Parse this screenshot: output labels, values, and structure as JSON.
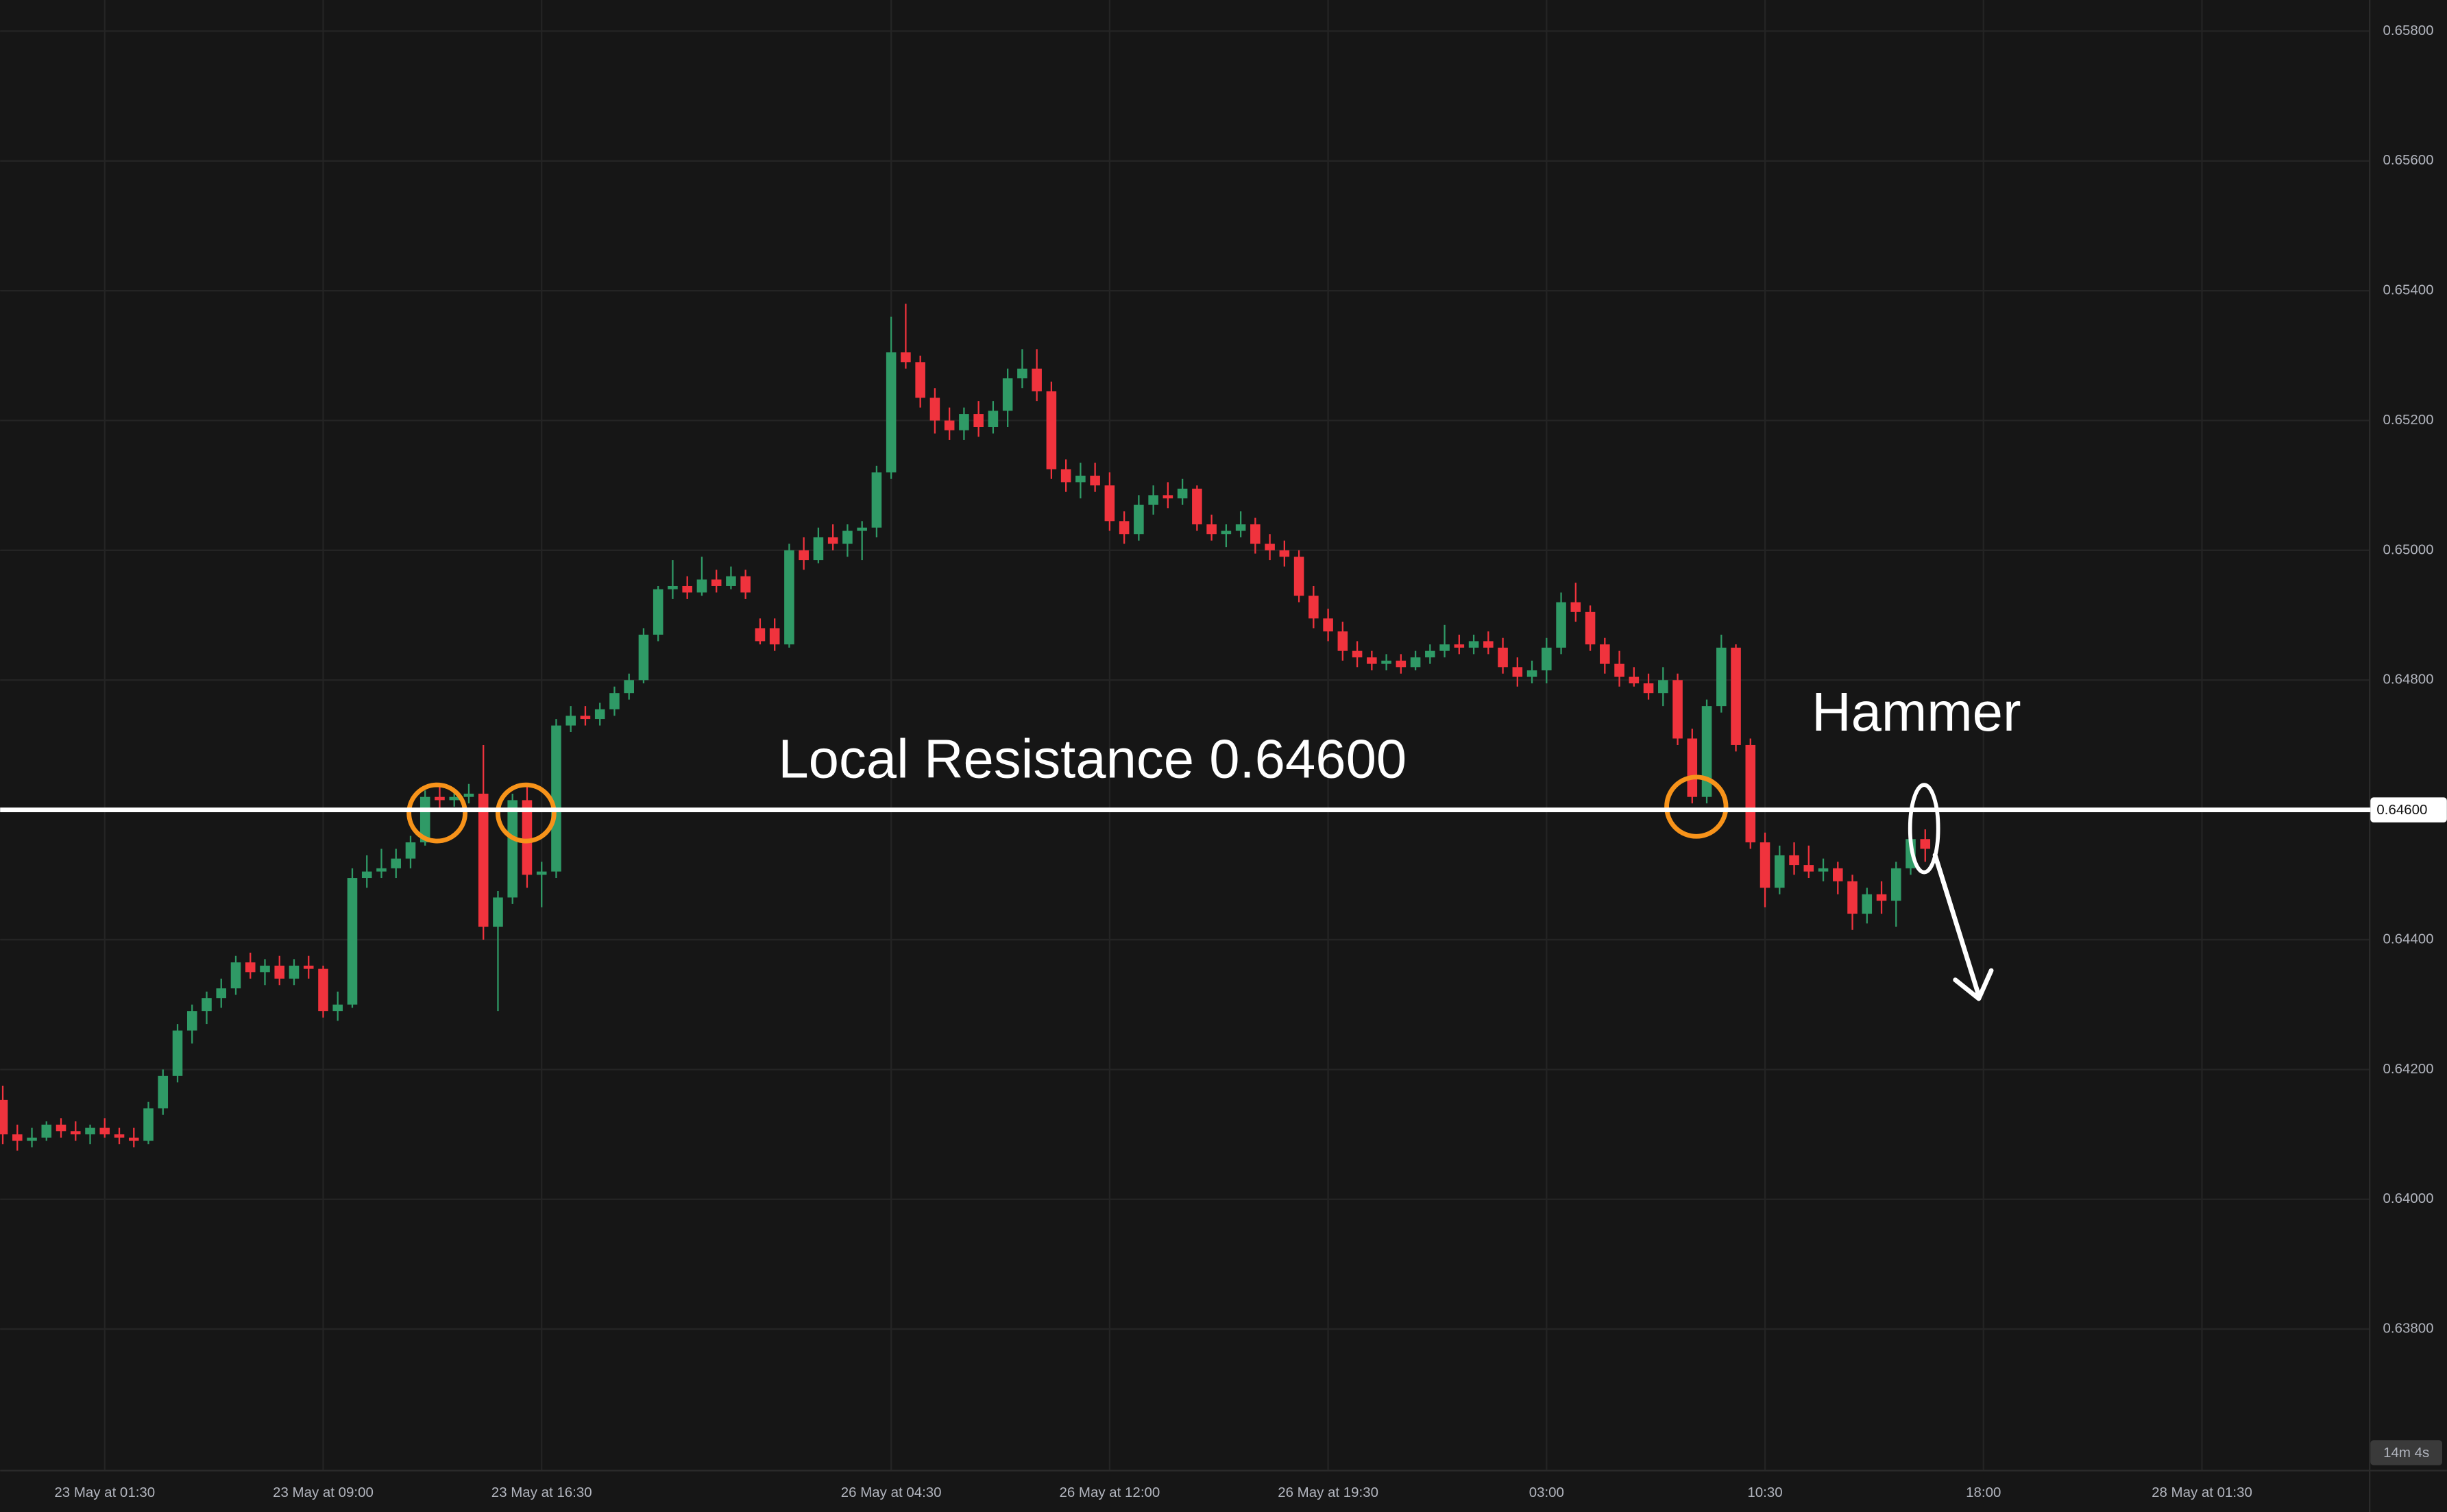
{
  "chart_data": {
    "type": "candlestick",
    "up_color": "#2f9a66",
    "down_color": "#f0333d",
    "grid": true,
    "categories": [
      null,
      null,
      null,
      null,
      null,
      null,
      null,
      "23 May at 01:30",
      null,
      null,
      null,
      null,
      null,
      null,
      null,
      null,
      null,
      null,
      null,
      null,
      null,
      null,
      "23 May at 09:00",
      null,
      null,
      null,
      null,
      null,
      null,
      null,
      null,
      null,
      null,
      null,
      null,
      null,
      null,
      "23 May at 16:30",
      null,
      null,
      null,
      null,
      null,
      null,
      null,
      null,
      null,
      null,
      null,
      null,
      null,
      null,
      null,
      null,
      null,
      null,
      null,
      null,
      null,
      null,
      null,
      "26 May at 04:30",
      null,
      null,
      null,
      null,
      null,
      null,
      null,
      null,
      null,
      null,
      null,
      null,
      null,
      null,
      "26 May at 12:00",
      null,
      null,
      null,
      null,
      null,
      null,
      null,
      null,
      null,
      null,
      null,
      null,
      null,
      null,
      "26 May at 19:30",
      null,
      null,
      null,
      null,
      null,
      null,
      null,
      null,
      null,
      null,
      null,
      null,
      null,
      null,
      "03:00",
      null,
      null,
      null,
      null,
      null,
      null,
      null,
      null,
      null,
      null,
      null,
      null,
      null,
      null,
      "10:30",
      null,
      null,
      null,
      null,
      null,
      null,
      null,
      null,
      null,
      null,
      null,
      null,
      null,
      null,
      "18:00",
      null,
      null,
      null,
      null,
      null,
      null,
      null,
      null,
      null,
      null,
      null,
      null,
      null,
      null,
      "28 May at 01:30",
      null,
      null,
      null,
      null,
      null,
      null,
      null,
      null,
      null,
      null,
      null
    ],
    "ohlc": [
      [
        0.64153,
        0.64175,
        0.64085,
        0.641
      ],
      [
        0.641,
        0.64115,
        0.64075,
        0.6409
      ],
      [
        0.6409,
        0.6411,
        0.6408,
        0.64095
      ],
      [
        0.64095,
        0.6412,
        0.6409,
        0.64115
      ],
      [
        0.64115,
        0.64125,
        0.64095,
        0.64105
      ],
      [
        0.64105,
        0.6412,
        0.6409,
        0.641
      ],
      [
        0.641,
        0.64115,
        0.64085,
        0.6411
      ],
      [
        0.6411,
        0.64125,
        0.64095,
        0.641
      ],
      [
        0.641,
        0.6411,
        0.64085,
        0.64095
      ],
      [
        0.64095,
        0.6411,
        0.6408,
        0.6409
      ],
      [
        0.6409,
        0.6415,
        0.64085,
        0.6414
      ],
      [
        0.6414,
        0.642,
        0.6413,
        0.6419
      ],
      [
        0.6419,
        0.6427,
        0.6418,
        0.6426
      ],
      [
        0.6426,
        0.643,
        0.6424,
        0.6429
      ],
      [
        0.6429,
        0.6432,
        0.6427,
        0.6431
      ],
      [
        0.6431,
        0.6434,
        0.64295,
        0.64325
      ],
      [
        0.64325,
        0.64375,
        0.64315,
        0.64365
      ],
      [
        0.64365,
        0.6438,
        0.6434,
        0.6435
      ],
      [
        0.6435,
        0.6437,
        0.6433,
        0.6436
      ],
      [
        0.6436,
        0.64375,
        0.6433,
        0.6434
      ],
      [
        0.6434,
        0.6437,
        0.6433,
        0.6436
      ],
      [
        0.6436,
        0.64375,
        0.6434,
        0.64355
      ],
      [
        0.64355,
        0.6436,
        0.6428,
        0.6429
      ],
      [
        0.6429,
        0.6432,
        0.64275,
        0.643
      ],
      [
        0.643,
        0.6451,
        0.64295,
        0.64495
      ],
      [
        0.64495,
        0.6453,
        0.6448,
        0.64505
      ],
      [
        0.64505,
        0.6454,
        0.64495,
        0.6451
      ],
      [
        0.6451,
        0.6454,
        0.64495,
        0.64525
      ],
      [
        0.64525,
        0.6456,
        0.6451,
        0.6455
      ],
      [
        0.6455,
        0.6463,
        0.64545,
        0.6462
      ],
      [
        0.6462,
        0.6464,
        0.646,
        0.64615
      ],
      [
        0.64615,
        0.6463,
        0.64605,
        0.6462
      ],
      [
        0.6462,
        0.6464,
        0.6461,
        0.64625
      ],
      [
        0.64625,
        0.647,
        0.644,
        0.6442
      ],
      [
        0.6442,
        0.64475,
        0.6429,
        0.64465
      ],
      [
        0.64465,
        0.64625,
        0.64455,
        0.64615
      ],
      [
        0.64615,
        0.6464,
        0.6448,
        0.645
      ],
      [
        0.645,
        0.6452,
        0.6445,
        0.64505
      ],
      [
        0.64505,
        0.6474,
        0.64495,
        0.6473
      ],
      [
        0.6473,
        0.6476,
        0.6472,
        0.64745
      ],
      [
        0.64745,
        0.6476,
        0.6473,
        0.6474
      ],
      [
        0.6474,
        0.64765,
        0.6473,
        0.64755
      ],
      [
        0.64755,
        0.6479,
        0.64745,
        0.6478
      ],
      [
        0.6478,
        0.6481,
        0.6477,
        0.648
      ],
      [
        0.648,
        0.6488,
        0.64795,
        0.6487
      ],
      [
        0.6487,
        0.64945,
        0.6486,
        0.6494
      ],
      [
        0.6494,
        0.64985,
        0.64925,
        0.64945
      ],
      [
        0.64945,
        0.6496,
        0.64925,
        0.64935
      ],
      [
        0.64935,
        0.6499,
        0.6493,
        0.64955
      ],
      [
        0.64955,
        0.6497,
        0.64935,
        0.64945
      ],
      [
        0.64945,
        0.64975,
        0.6494,
        0.6496
      ],
      [
        0.6496,
        0.6497,
        0.64925,
        0.64935
      ],
      [
        0.6488,
        0.64895,
        0.64855,
        0.6486
      ],
      [
        0.6488,
        0.64895,
        0.64845,
        0.64855
      ],
      [
        0.64855,
        0.6501,
        0.6485,
        0.65
      ],
      [
        0.65,
        0.6502,
        0.6497,
        0.64985
      ],
      [
        0.64985,
        0.65035,
        0.6498,
        0.6502
      ],
      [
        0.6502,
        0.6504,
        0.65,
        0.6501
      ],
      [
        0.6501,
        0.6504,
        0.6499,
        0.6503
      ],
      [
        0.6503,
        0.65045,
        0.64985,
        0.65035
      ],
      [
        0.65035,
        0.6513,
        0.6502,
        0.6512
      ],
      [
        0.6512,
        0.6536,
        0.6511,
        0.65305
      ],
      [
        0.65305,
        0.6538,
        0.6528,
        0.6529
      ],
      [
        0.6529,
        0.653,
        0.6522,
        0.65235
      ],
      [
        0.65235,
        0.6525,
        0.6518,
        0.652
      ],
      [
        0.652,
        0.6522,
        0.6517,
        0.65185
      ],
      [
        0.65185,
        0.6522,
        0.6517,
        0.6521
      ],
      [
        0.6521,
        0.6523,
        0.65175,
        0.6519
      ],
      [
        0.6519,
        0.6523,
        0.6518,
        0.65215
      ],
      [
        0.65215,
        0.6528,
        0.6519,
        0.65265
      ],
      [
        0.65265,
        0.6531,
        0.6525,
        0.6528
      ],
      [
        0.6528,
        0.6531,
        0.6523,
        0.65245
      ],
      [
        0.65245,
        0.6526,
        0.6511,
        0.65125
      ],
      [
        0.65125,
        0.6514,
        0.6509,
        0.65105
      ],
      [
        0.65105,
        0.65135,
        0.6508,
        0.65115
      ],
      [
        0.65115,
        0.65135,
        0.6509,
        0.651
      ],
      [
        0.651,
        0.6512,
        0.6503,
        0.65045
      ],
      [
        0.65045,
        0.6506,
        0.6501,
        0.65025
      ],
      [
        0.65025,
        0.65085,
        0.65015,
        0.6507
      ],
      [
        0.6507,
        0.651,
        0.65055,
        0.65085
      ],
      [
        0.65085,
        0.65105,
        0.65065,
        0.6508
      ],
      [
        0.6508,
        0.6511,
        0.6507,
        0.65095
      ],
      [
        0.65095,
        0.651,
        0.6503,
        0.6504
      ],
      [
        0.6504,
        0.65055,
        0.65015,
        0.65025
      ],
      [
        0.65025,
        0.6504,
        0.65005,
        0.6503
      ],
      [
        0.6503,
        0.6506,
        0.6502,
        0.6504
      ],
      [
        0.6504,
        0.6505,
        0.64995,
        0.6501
      ],
      [
        0.6501,
        0.65025,
        0.64985,
        0.65
      ],
      [
        0.65,
        0.65015,
        0.64975,
        0.6499
      ],
      [
        0.6499,
        0.65,
        0.6492,
        0.6493
      ],
      [
        0.6493,
        0.64945,
        0.6488,
        0.64895
      ],
      [
        0.64895,
        0.6491,
        0.6486,
        0.64875
      ],
      [
        0.64875,
        0.6489,
        0.6483,
        0.64845
      ],
      [
        0.64845,
        0.6486,
        0.6482,
        0.64835
      ],
      [
        0.64835,
        0.64845,
        0.64815,
        0.64825
      ],
      [
        0.64825,
        0.6484,
        0.64815,
        0.6483
      ],
      [
        0.6483,
        0.6484,
        0.6481,
        0.6482
      ],
      [
        0.6482,
        0.64845,
        0.64815,
        0.64835
      ],
      [
        0.64835,
        0.64855,
        0.64825,
        0.64845
      ],
      [
        0.64845,
        0.64885,
        0.64835,
        0.64855
      ],
      [
        0.64855,
        0.6487,
        0.6484,
        0.6485
      ],
      [
        0.6485,
        0.6487,
        0.6484,
        0.6486
      ],
      [
        0.6486,
        0.64875,
        0.6484,
        0.6485
      ],
      [
        0.6485,
        0.64865,
        0.6481,
        0.6482
      ],
      [
        0.6482,
        0.64835,
        0.6479,
        0.64805
      ],
      [
        0.64805,
        0.6483,
        0.64795,
        0.64815
      ],
      [
        0.64815,
        0.64865,
        0.64795,
        0.6485
      ],
      [
        0.6485,
        0.64935,
        0.6484,
        0.6492
      ],
      [
        0.6492,
        0.6495,
        0.6489,
        0.64905
      ],
      [
        0.64905,
        0.64915,
        0.64845,
        0.64855
      ],
      [
        0.64855,
        0.64865,
        0.6481,
        0.64825
      ],
      [
        0.64825,
        0.64845,
        0.6479,
        0.64805
      ],
      [
        0.64805,
        0.6482,
        0.6479,
        0.64795
      ],
      [
        0.64795,
        0.6481,
        0.6477,
        0.6478
      ],
      [
        0.6478,
        0.6482,
        0.6476,
        0.648
      ],
      [
        0.648,
        0.6481,
        0.647,
        0.6471
      ],
      [
        0.6471,
        0.64725,
        0.6461,
        0.6462
      ],
      [
        0.6462,
        0.6477,
        0.6461,
        0.6476
      ],
      [
        0.6476,
        0.6487,
        0.6475,
        0.6485
      ],
      [
        0.6485,
        0.64855,
        0.6469,
        0.647
      ],
      [
        0.647,
        0.6471,
        0.6454,
        0.6455
      ],
      [
        0.6455,
        0.64565,
        0.6445,
        0.6448
      ],
      [
        0.6448,
        0.64545,
        0.6447,
        0.6453
      ],
      [
        0.6453,
        0.6455,
        0.645,
        0.64515
      ],
      [
        0.64515,
        0.64545,
        0.64495,
        0.64505
      ],
      [
        0.64505,
        0.64525,
        0.6449,
        0.6451
      ],
      [
        0.6451,
        0.6452,
        0.6447,
        0.6449
      ],
      [
        0.6449,
        0.645,
        0.64415,
        0.6444
      ],
      [
        0.6444,
        0.6448,
        0.64425,
        0.6447
      ],
      [
        0.6447,
        0.6449,
        0.6444,
        0.6446
      ],
      [
        0.6446,
        0.6452,
        0.6442,
        0.6451
      ],
      [
        0.6451,
        0.6456,
        0.645,
        0.64555
      ],
      [
        0.64555,
        0.6457,
        0.6452,
        0.6454
      ],
      null,
      null,
      null,
      null,
      null,
      null,
      null,
      null,
      null,
      null,
      null,
      null,
      null,
      null,
      null,
      null,
      null,
      null,
      null,
      null,
      null,
      null,
      null,
      null,
      null,
      null,
      null,
      null,
      null,
      null
    ],
    "ylim": [
      0.63583,
      0.65848
    ],
    "yticks": [
      {
        "value": 0.638,
        "label": "0.63800"
      },
      {
        "value": 0.64,
        "label": "0.64000"
      },
      {
        "value": 0.642,
        "label": "0.64200"
      },
      {
        "value": 0.644,
        "label": "0.64400"
      },
      {
        "value": 0.646,
        "label": "0.64600"
      },
      {
        "value": 0.648,
        "label": "0.64800"
      },
      {
        "value": 0.65,
        "label": "0.65000"
      },
      {
        "value": 0.652,
        "label": "0.65200"
      },
      {
        "value": 0.654,
        "label": "0.65400"
      },
      {
        "value": 0.656,
        "label": "0.65600"
      },
      {
        "value": 0.658,
        "label": "0.65800"
      }
    ],
    "resistance": {
      "value": 0.646,
      "label": "0.64600"
    },
    "annotations": [
      "Local Resistance 0.64600",
      "Hammer"
    ],
    "countdown": "14m 4s"
  }
}
